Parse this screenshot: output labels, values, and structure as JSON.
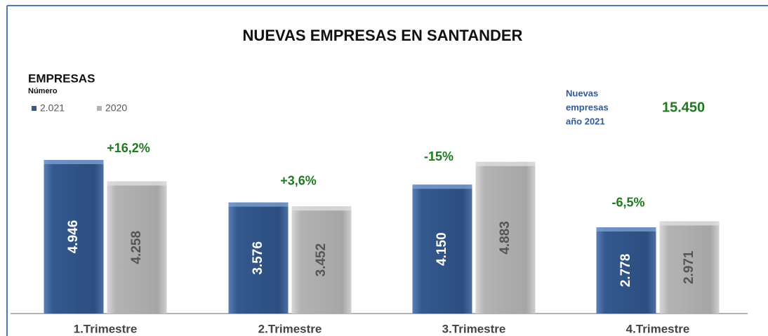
{
  "chart_data": {
    "type": "bar",
    "title": "NUEVAS EMPRESAS EN SANTANDER",
    "y_label": "EMPRESAS",
    "y_sublabel": "Número",
    "categories": [
      "1.Trimestre",
      "2.Trimestre",
      "3.Trimestre",
      "4.Trimestre"
    ],
    "series": [
      {
        "name": "2.021",
        "color": "#34598f",
        "values": [
          4946,
          3576,
          4150,
          2778
        ],
        "value_labels": [
          "4.946",
          "3.576",
          "4.150",
          "2.778"
        ]
      },
      {
        "name": "2020",
        "color": "#b3b3b3",
        "values": [
          4258,
          3452,
          4883,
          2971
        ],
        "value_labels": [
          "4.258",
          "3.452",
          "4.883",
          "2.971"
        ]
      }
    ],
    "annotations": [
      "+16,2%",
      "+3,6%",
      "-15%",
      "-6,5%"
    ],
    "total": {
      "label": [
        "Nuevas",
        "empresas",
        "año 2021"
      ],
      "value": 15450,
      "value_label": "15.450"
    }
  }
}
